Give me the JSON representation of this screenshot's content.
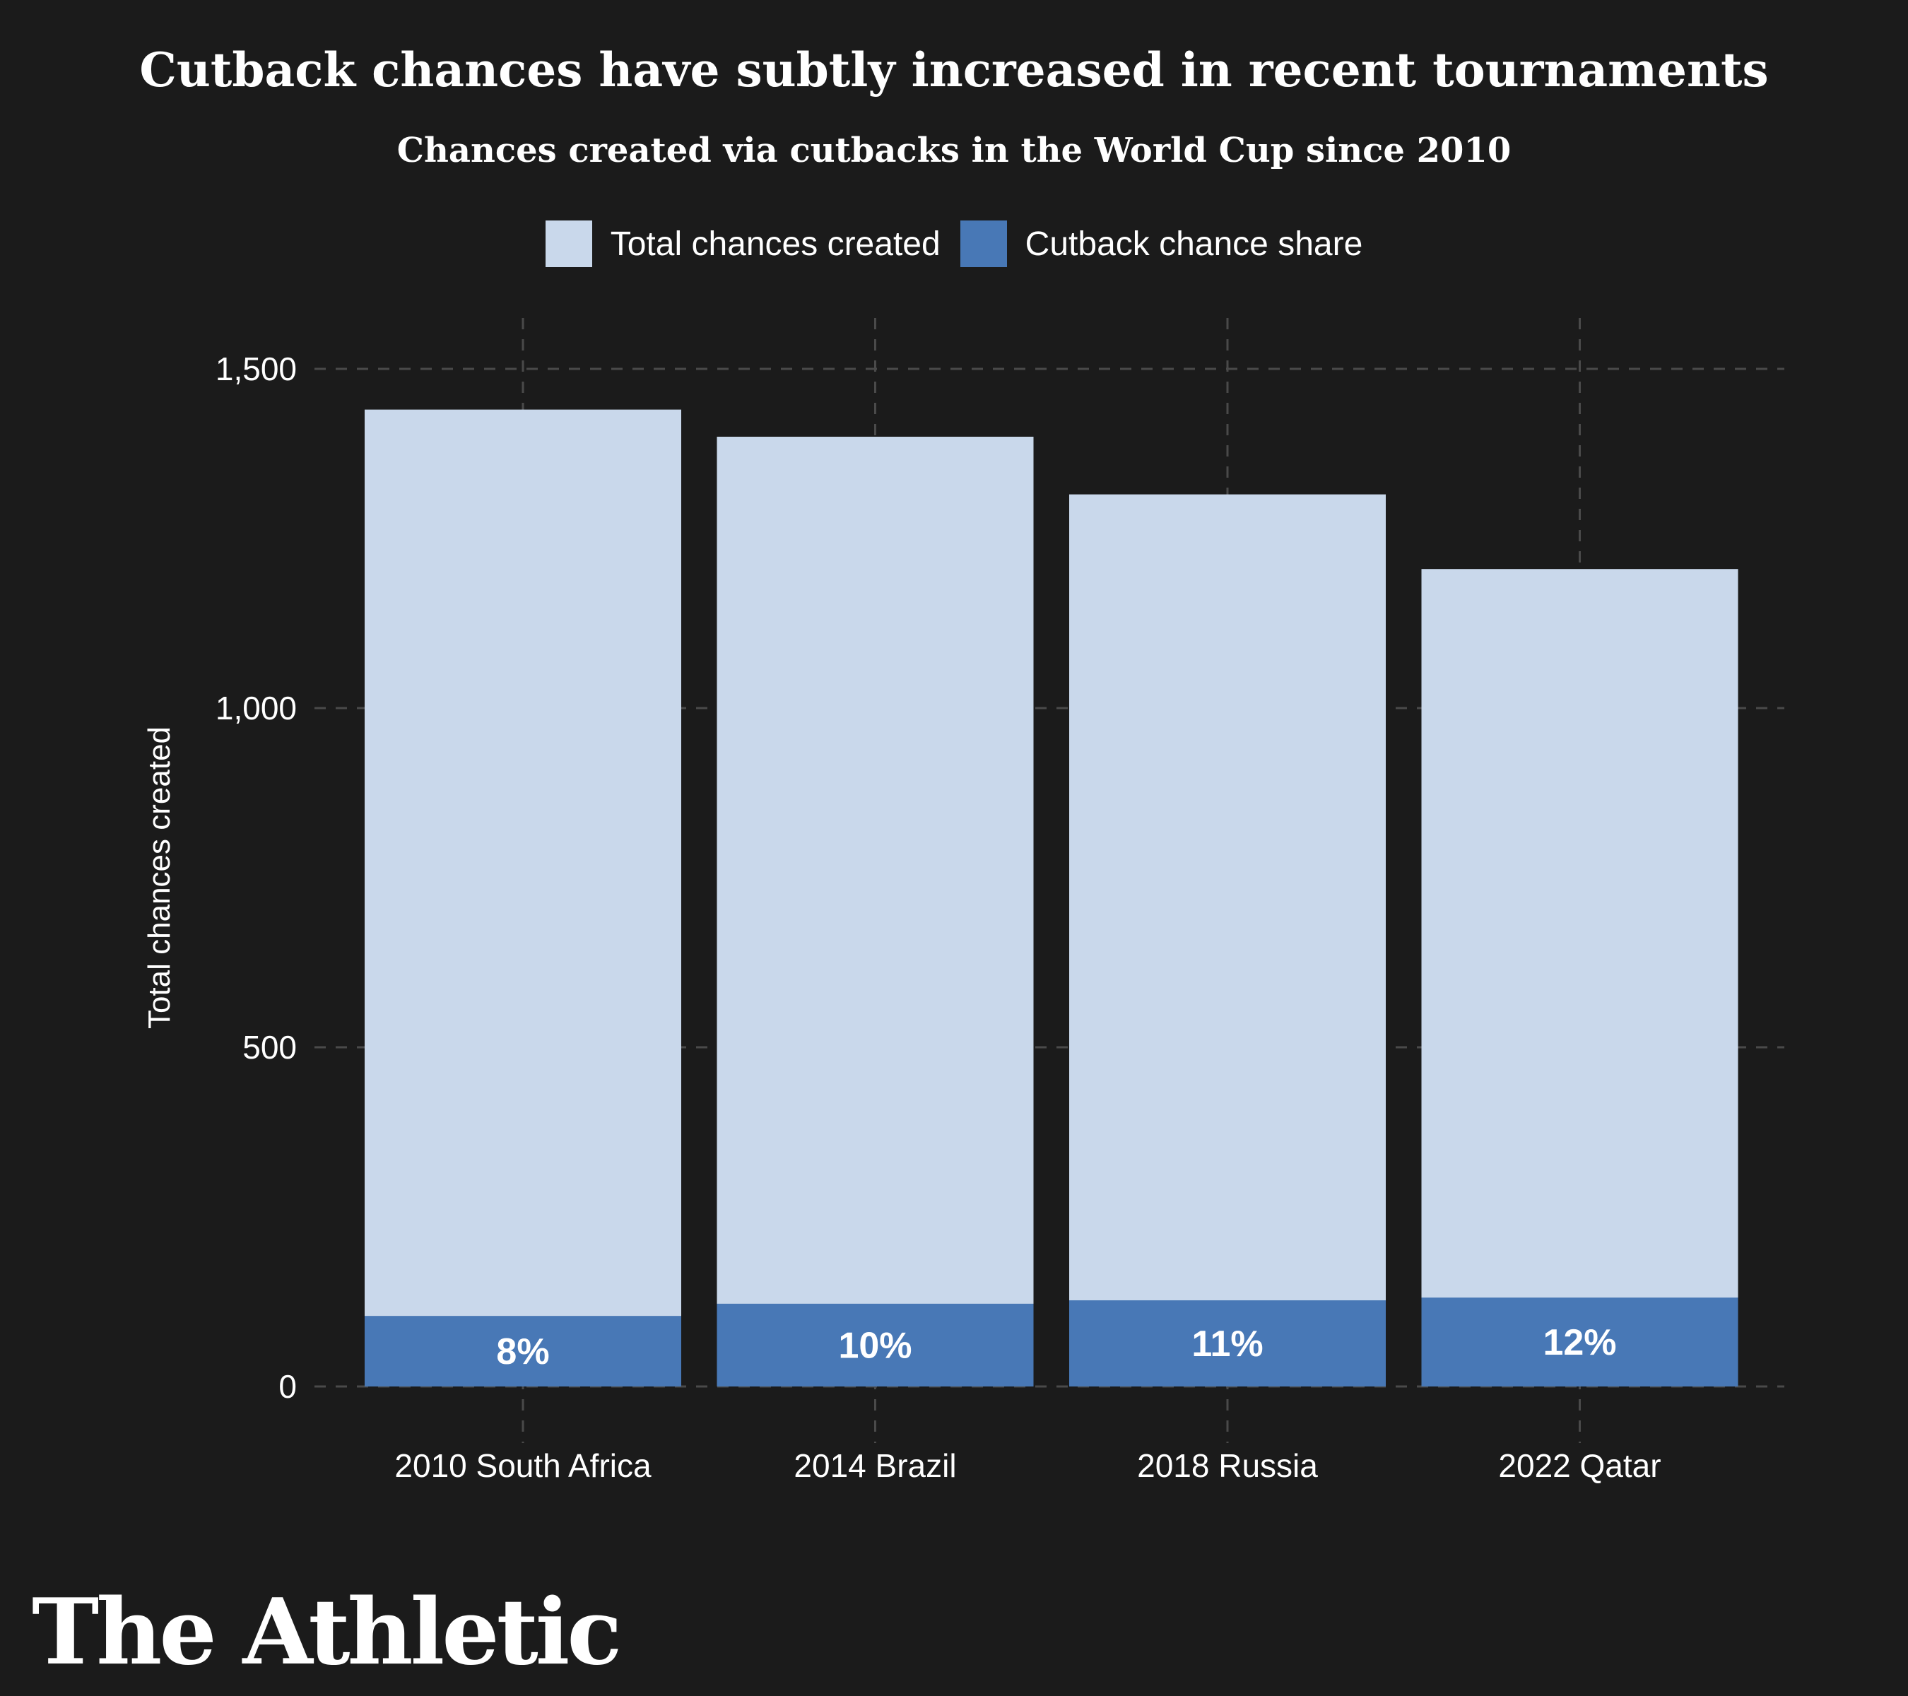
{
  "chart_data": {
    "type": "bar",
    "title": "Cutback chances have subtly increased in recent tournaments",
    "subtitle": "Chances created via cutbacks in the World Cup since 2010",
    "xlabel": "",
    "ylabel": "Total chances created",
    "categories": [
      "2010 South Africa",
      "2014 Brazil",
      "2018 Russia",
      "2022 Qatar"
    ],
    "series": [
      {
        "name": "Total chances created",
        "values": [
          1440,
          1400,
          1315,
          1205
        ],
        "color": "#c9d8eb"
      },
      {
        "name": "Cutback chance share",
        "values": [
          104,
          122,
          127,
          131
        ],
        "color": "#4878b6"
      }
    ],
    "bar_labels": [
      "8%",
      "10%",
      "11%",
      "12%"
    ],
    "ylim": [
      0,
      1500
    ],
    "yticks": [
      0,
      500,
      1000,
      1500
    ],
    "ytick_labels": [
      "0",
      "500",
      "1,000",
      "1,500"
    ],
    "grid": true,
    "legend_position": "top-center"
  },
  "background_color": "#1b1b1b",
  "logo_text": "The Athletic"
}
